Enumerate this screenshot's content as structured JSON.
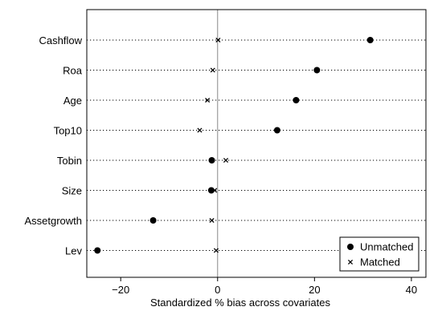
{
  "chart_data": {
    "type": "scatter",
    "title": "",
    "xlabel": "Standardized % bias across covariates",
    "ylabel": "",
    "xlim": [
      -27,
      43
    ],
    "x_ticks": [
      -20,
      0,
      20,
      40
    ],
    "x_tick_labels": [
      "−20",
      "0",
      "20",
      "40"
    ],
    "categories": [
      "Cashflow",
      "Roa",
      "Age",
      "Top10",
      "Tobin",
      "Size",
      "Assetgrowth",
      "Lev"
    ],
    "series": [
      {
        "name": "Unmatched",
        "marker": "filled-circle",
        "values": [
          31.5,
          20.5,
          16.2,
          12.3,
          -1.2,
          -1.3,
          -13.3,
          -24.8
        ]
      },
      {
        "name": "Matched",
        "marker": "x",
        "values": [
          0.1,
          -1.0,
          -2.1,
          -3.7,
          1.7,
          -0.6,
          -1.2,
          -0.3
        ]
      }
    ],
    "reference_line_x": 0,
    "grid": "dotted horizontal lines at each category",
    "legend_position": "bottom-right"
  }
}
